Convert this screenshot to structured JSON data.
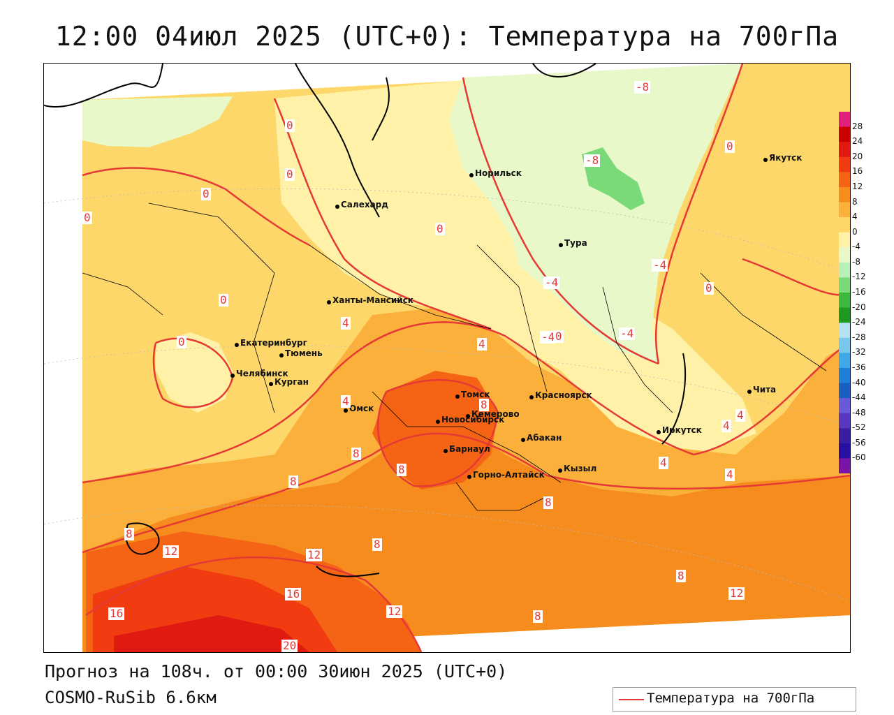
{
  "title": "12:00 04июл 2025 (UTC+0): Температура на 700гПа",
  "forecast_line": "Прогноз на 108ч. от 00:00 30июн 2025 (UTC+0)",
  "model_line": "COSMO-RuSib 6.6км",
  "legend_label": "Температура на 700гПа",
  "colorbar": {
    "levels": [
      "28",
      "24",
      "20",
      "16",
      "12",
      "8",
      "4",
      "0",
      "-4",
      "-8",
      "-12",
      "-16",
      "-20",
      "-24",
      "-28",
      "-32",
      "-36",
      "-40",
      "-44",
      "-48",
      "-52",
      "-56",
      "-60"
    ],
    "colors": [
      "#e0207a",
      "#c80000",
      "#e01a10",
      "#f03c10",
      "#f46414",
      "#f68c1e",
      "#fbb03b",
      "#fdd76a",
      "#fff2a8",
      "#e8f8c8",
      "#b8f0b8",
      "#7ada7a",
      "#3cb83c",
      "#1e9a1e",
      "#b4e0f0",
      "#78c8ee",
      "#40a8e8",
      "#2080d8",
      "#1860c0",
      "#6a5ad8",
      "#5838c0",
      "#3a1ea0",
      "#2810a0",
      "#7a14a8"
    ]
  },
  "cities": [
    {
      "name": "Якутск"
    },
    {
      "name": "Норильск"
    },
    {
      "name": "Салехард"
    },
    {
      "name": "Тура"
    },
    {
      "name": "Ханты-Мансийск"
    },
    {
      "name": "Екатеринбург"
    },
    {
      "name": "Тюмень"
    },
    {
      "name": "Челябинск"
    },
    {
      "name": "Курган"
    },
    {
      "name": "Омск"
    },
    {
      "name": "Новосибирск"
    },
    {
      "name": "Томск"
    },
    {
      "name": "Кемерово"
    },
    {
      "name": "Красноярск"
    },
    {
      "name": "Барнаул"
    },
    {
      "name": "Абакан"
    },
    {
      "name": "Горно-Алтайск"
    },
    {
      "name": "Кызыл"
    },
    {
      "name": "Иркутск"
    },
    {
      "name": "Чита"
    }
  ],
  "contour_labels": [
    "-8",
    "-8",
    "-4",
    "-4",
    "-4",
    "-4",
    "0",
    "0",
    "0",
    "0",
    "0",
    "0",
    "0",
    "0",
    "0",
    "0",
    "4",
    "4",
    "4",
    "4",
    "4",
    "4",
    "4",
    "8",
    "8",
    "8",
    "8",
    "8",
    "8",
    "8",
    "8",
    "8",
    "12",
    "12",
    "12",
    "12",
    "16",
    "16",
    "20"
  ]
}
